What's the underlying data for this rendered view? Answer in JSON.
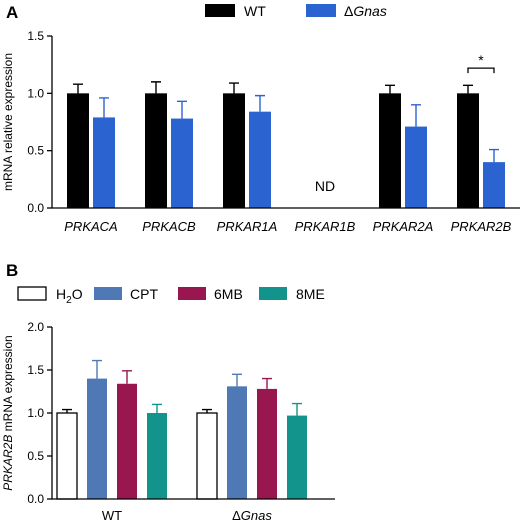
{
  "panel_a": {
    "label": "A",
    "legend": [
      {
        "name": "WT",
        "color": "#000000"
      },
      {
        "name_prefix": "Δ",
        "name_italic": "Gnas",
        "color": "#2b63d1"
      }
    ],
    "not_detected_label": "ND",
    "significance_label": "*"
  },
  "panel_b": {
    "label": "B",
    "legend": [
      {
        "name": "H",
        "subscript": "2",
        "suffix": "O",
        "color": "#ffffff"
      },
      {
        "name": "CPT",
        "color": "#4e79b5"
      },
      {
        "name": "6MB",
        "color": "#97174e"
      },
      {
        "name": "8ME",
        "color": "#12948c"
      }
    ]
  },
  "chart_data": [
    {
      "type": "bar",
      "ylabel": "mRNA relative expression",
      "ylim": [
        0,
        1.5
      ],
      "yticks": [
        "0.0",
        "0.5",
        "1.0",
        "1.5"
      ],
      "categories": [
        "PRKACA",
        "PRKACB",
        "PRKAR1A",
        "PRKAR1B",
        "PRKAR2A",
        "PRKAR2B"
      ],
      "series": [
        {
          "name": "WT",
          "color": "#000000",
          "values": [
            1.0,
            1.0,
            1.0,
            null,
            1.0,
            1.0
          ],
          "errors": [
            0.08,
            0.1,
            0.09,
            null,
            0.07,
            0.07
          ]
        },
        {
          "name": "ΔGnas",
          "color": "#2b63d1",
          "values": [
            0.79,
            0.78,
            0.84,
            null,
            0.71,
            0.4
          ],
          "errors": [
            0.17,
            0.15,
            0.14,
            null,
            0.19,
            0.11
          ]
        }
      ],
      "annotations": [
        {
          "category": "PRKAR1B",
          "text": "ND"
        },
        {
          "category": "PRKAR2B",
          "text": "*"
        }
      ]
    },
    {
      "type": "bar",
      "ylabel_italic": "PRKAR2B",
      "ylabel_rest": " mRNA expression",
      "ylim": [
        0,
        2.0
      ],
      "yticks": [
        "0.0",
        "0.5",
        "1.0",
        "1.5",
        "2.0"
      ],
      "categories": [
        {
          "text": "WT"
        },
        {
          "prefix": "Δ",
          "italic": "Gnas"
        }
      ],
      "series": [
        {
          "name": "H2O",
          "color": "#ffffff",
          "values": [
            1.0,
            1.0
          ],
          "errors": [
            0.04,
            0.04
          ]
        },
        {
          "name": "CPT",
          "color": "#4e79b5",
          "values": [
            1.4,
            1.31
          ],
          "errors": [
            0.21,
            0.14
          ]
        },
        {
          "name": "6MB",
          "color": "#97174e",
          "values": [
            1.34,
            1.28
          ],
          "errors": [
            0.15,
            0.12
          ]
        },
        {
          "name": "8ME",
          "color": "#12948c",
          "values": [
            1.0,
            0.97
          ],
          "errors": [
            0.1,
            0.14
          ]
        }
      ]
    }
  ]
}
